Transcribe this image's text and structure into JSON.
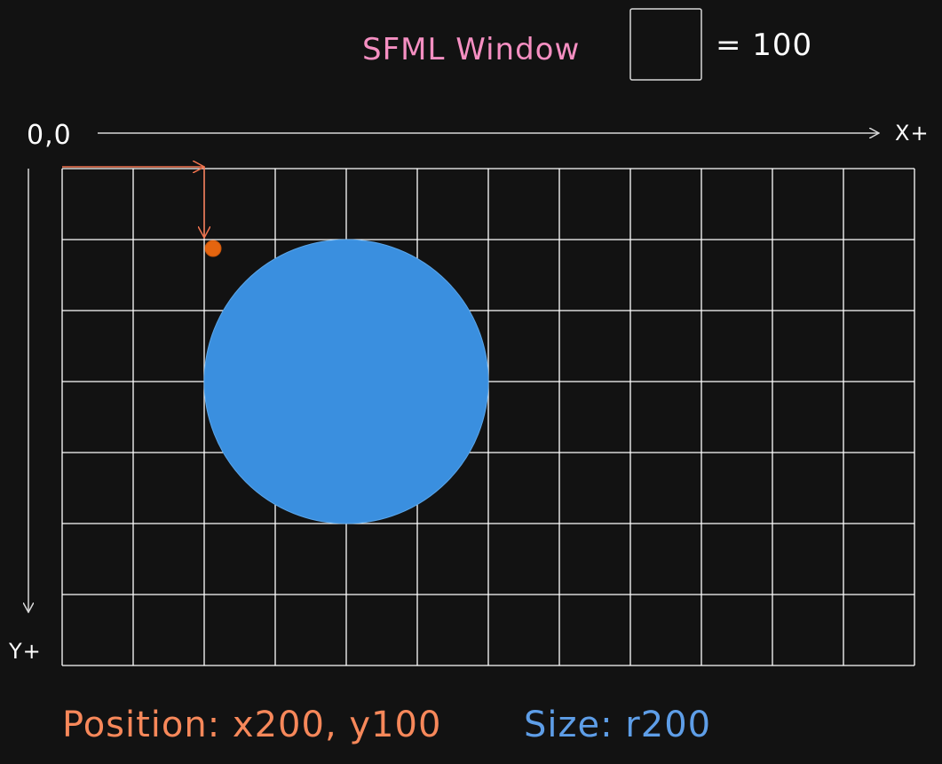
{
  "title": "SFML Window",
  "legend": {
    "scale_text": "= 100"
  },
  "axes": {
    "origin_label": "0,0",
    "x_label": "X+",
    "y_label": "Y+"
  },
  "grid": {
    "columns": 12,
    "rows": 7,
    "unit": 100
  },
  "shape": {
    "type": "circle",
    "position": {
      "x": 200,
      "y": 100
    },
    "radius": 200,
    "fill_color": "#3a8fdf"
  },
  "captions": {
    "position": "Position: x200, y100",
    "size": "Size: r200"
  },
  "colors": {
    "background": "#121212",
    "grid_line": "#ffffff",
    "title": "#f58fc2",
    "position_caption": "#f7885a",
    "size_caption": "#5e9ee8",
    "position_marker": "#e5650f",
    "position_arrows": "#f0734e",
    "axis_line": "#d8d8d8"
  }
}
